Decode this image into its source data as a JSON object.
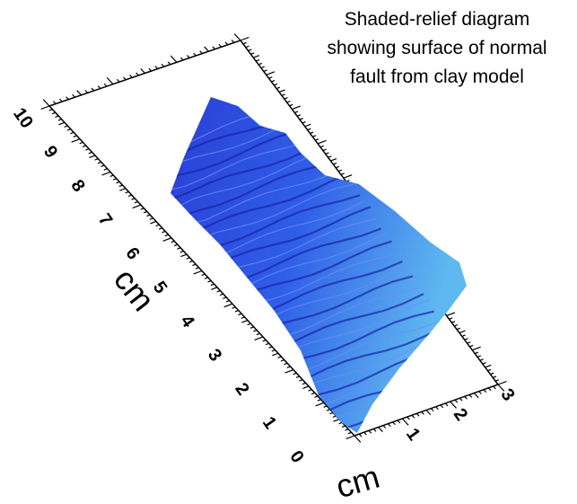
{
  "title": [
    "Shaded-relief diagram",
    "showing surface of normal",
    "fault from clay model"
  ],
  "axes": {
    "long": {
      "label": "cm",
      "ticks": [
        "0",
        "1",
        "2",
        "3",
        "4",
        "5",
        "6",
        "7",
        "8",
        "9",
        "10"
      ]
    },
    "short": {
      "label": "cm",
      "ticks": [
        "1",
        "2",
        "3"
      ]
    }
  }
}
